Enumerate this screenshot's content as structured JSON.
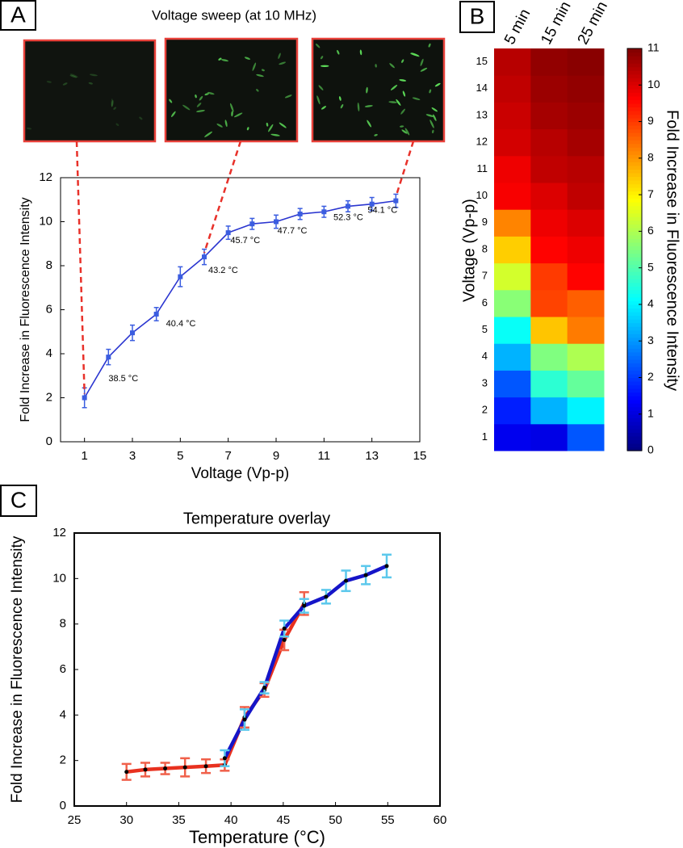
{
  "chart_data": [
    {
      "type": "line",
      "panel": "A",
      "title": "Voltage sweep (at 10 MHz)",
      "xlabel": "Voltage (Vp-p)",
      "ylabel": "Fold Increase in Fluorescence Intensity",
      "x": [
        1,
        2,
        3,
        4,
        5,
        6,
        7,
        8,
        9,
        10,
        11,
        12,
        13,
        14
      ],
      "series": [
        {
          "color": "#2a35d0",
          "marker_color": "#3b5de0",
          "values": [
            2.0,
            3.85,
            4.95,
            5.8,
            7.5,
            8.4,
            9.5,
            9.9,
            10.0,
            10.35,
            10.45,
            10.7,
            10.8,
            10.95
          ],
          "errors": [
            0.45,
            0.35,
            0.35,
            0.3,
            0.45,
            0.35,
            0.3,
            0.25,
            0.3,
            0.25,
            0.25,
            0.25,
            0.3,
            0.3
          ]
        }
      ],
      "annotations": [
        "38.5 °C",
        "40.4 °C",
        "43.2 °C",
        "45.7 °C",
        "47.7 °C",
        "52.3 °C",
        "54.1 °C"
      ],
      "xlim": [
        0,
        15
      ],
      "xticks": [
        1,
        3,
        5,
        7,
        9,
        11,
        13,
        15
      ],
      "ylim": [
        0,
        12
      ],
      "yticks": [
        0,
        2,
        4,
        6,
        8,
        10,
        12
      ]
    },
    {
      "type": "heatmap",
      "panel": "B",
      "ylabel": "Voltage (Vp-p)",
      "colorbar_label": "Fold Increase in Fluorescence Intensity",
      "columns": [
        "5 min",
        "15 min",
        "25 min"
      ],
      "rows": [
        1,
        2,
        3,
        4,
        5,
        6,
        7,
        8,
        9,
        10,
        11,
        12,
        13,
        14,
        15
      ],
      "values": [
        [
          1.2,
          1.1,
          2.3
        ],
        [
          1.7,
          3.3,
          4.0
        ],
        [
          2.3,
          4.6,
          5.2
        ],
        [
          3.3,
          5.5,
          6.0
        ],
        [
          4.2,
          7.5,
          8.3
        ],
        [
          5.6,
          8.9,
          8.6
        ],
        [
          6.4,
          9.0,
          9.6
        ],
        [
          7.4,
          9.6,
          9.8
        ],
        [
          8.2,
          9.8,
          10.0
        ],
        [
          9.7,
          10.0,
          10.3
        ],
        [
          9.8,
          10.3,
          10.4
        ],
        [
          10.1,
          10.4,
          10.6
        ],
        [
          10.2,
          10.6,
          10.7
        ],
        [
          10.3,
          10.7,
          10.8
        ],
        [
          10.4,
          10.8,
          10.9
        ]
      ],
      "colormap": "jet",
      "clim": [
        0,
        11
      ],
      "cticks": [
        0,
        1,
        2,
        3,
        4,
        5,
        6,
        7,
        8,
        9,
        10,
        11
      ]
    },
    {
      "type": "line",
      "panel": "C",
      "title": "Temperature overlay",
      "xlabel": "Temperature (°C)",
      "ylabel": "Fold Increase in Fluorescence Intensity",
      "series": [
        {
          "color": "#e8311f",
          "error_color": "#f0604a",
          "x": [
            30,
            31.8,
            33.7,
            35.6,
            37.6,
            39.4,
            41.3,
            43.2,
            45.1,
            47.0
          ],
          "values": [
            1.5,
            1.6,
            1.65,
            1.7,
            1.75,
            1.8,
            3.9,
            5.1,
            7.3,
            8.9
          ],
          "errors": [
            0.35,
            0.3,
            0.25,
            0.4,
            0.3,
            0.25,
            0.45,
            0.3,
            0.45,
            0.5
          ]
        },
        {
          "color": "#1515c8",
          "error_color": "#5bc8ec",
          "x": [
            39.4,
            41.3,
            43.2,
            45.1,
            47.0,
            49.1,
            51.0,
            52.9,
            54.9
          ],
          "values": [
            2.1,
            3.8,
            5.2,
            7.8,
            8.8,
            9.2,
            9.9,
            10.15,
            10.55
          ],
          "errors": [
            0.35,
            0.45,
            0.25,
            0.35,
            0.3,
            0.3,
            0.45,
            0.4,
            0.5
          ]
        }
      ],
      "xlim": [
        25,
        60
      ],
      "xticks": [
        25,
        30,
        35,
        40,
        45,
        50,
        55,
        60
      ],
      "ylim": [
        0,
        12
      ],
      "yticks": [
        0,
        2,
        4,
        6,
        8,
        10,
        12
      ]
    }
  ]
}
